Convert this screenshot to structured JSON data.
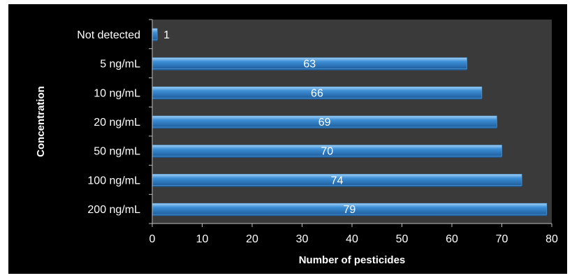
{
  "chart_data": {
    "type": "bar",
    "orientation": "horizontal",
    "categories": [
      "Not detected",
      "5 ng/mL",
      "10 ng/mL",
      "20 ng/mL",
      "50 ng/mL",
      "100 ng/mL",
      "200 ng/mL"
    ],
    "values": [
      1,
      63,
      66,
      69,
      70,
      74,
      79
    ],
    "data_labels": [
      "1",
      "63",
      "66",
      "69",
      "70",
      "74",
      "79"
    ],
    "xlabel": "Number of pesticides",
    "ylabel": "Concentration",
    "xlim": [
      0,
      80
    ],
    "xticks": [
      "0",
      "10",
      "20",
      "30",
      "40",
      "50",
      "60",
      "70",
      "80"
    ],
    "grid": false,
    "legend": "none",
    "colors": {
      "background": "#000000",
      "plot_area": "#3a3a3a",
      "bar": "#3d8fd6",
      "bar_dark": "#1f5f9e",
      "bar_light": "#8cc4ef",
      "text": "#ffffff",
      "axis": "#c0c0c0"
    }
  }
}
